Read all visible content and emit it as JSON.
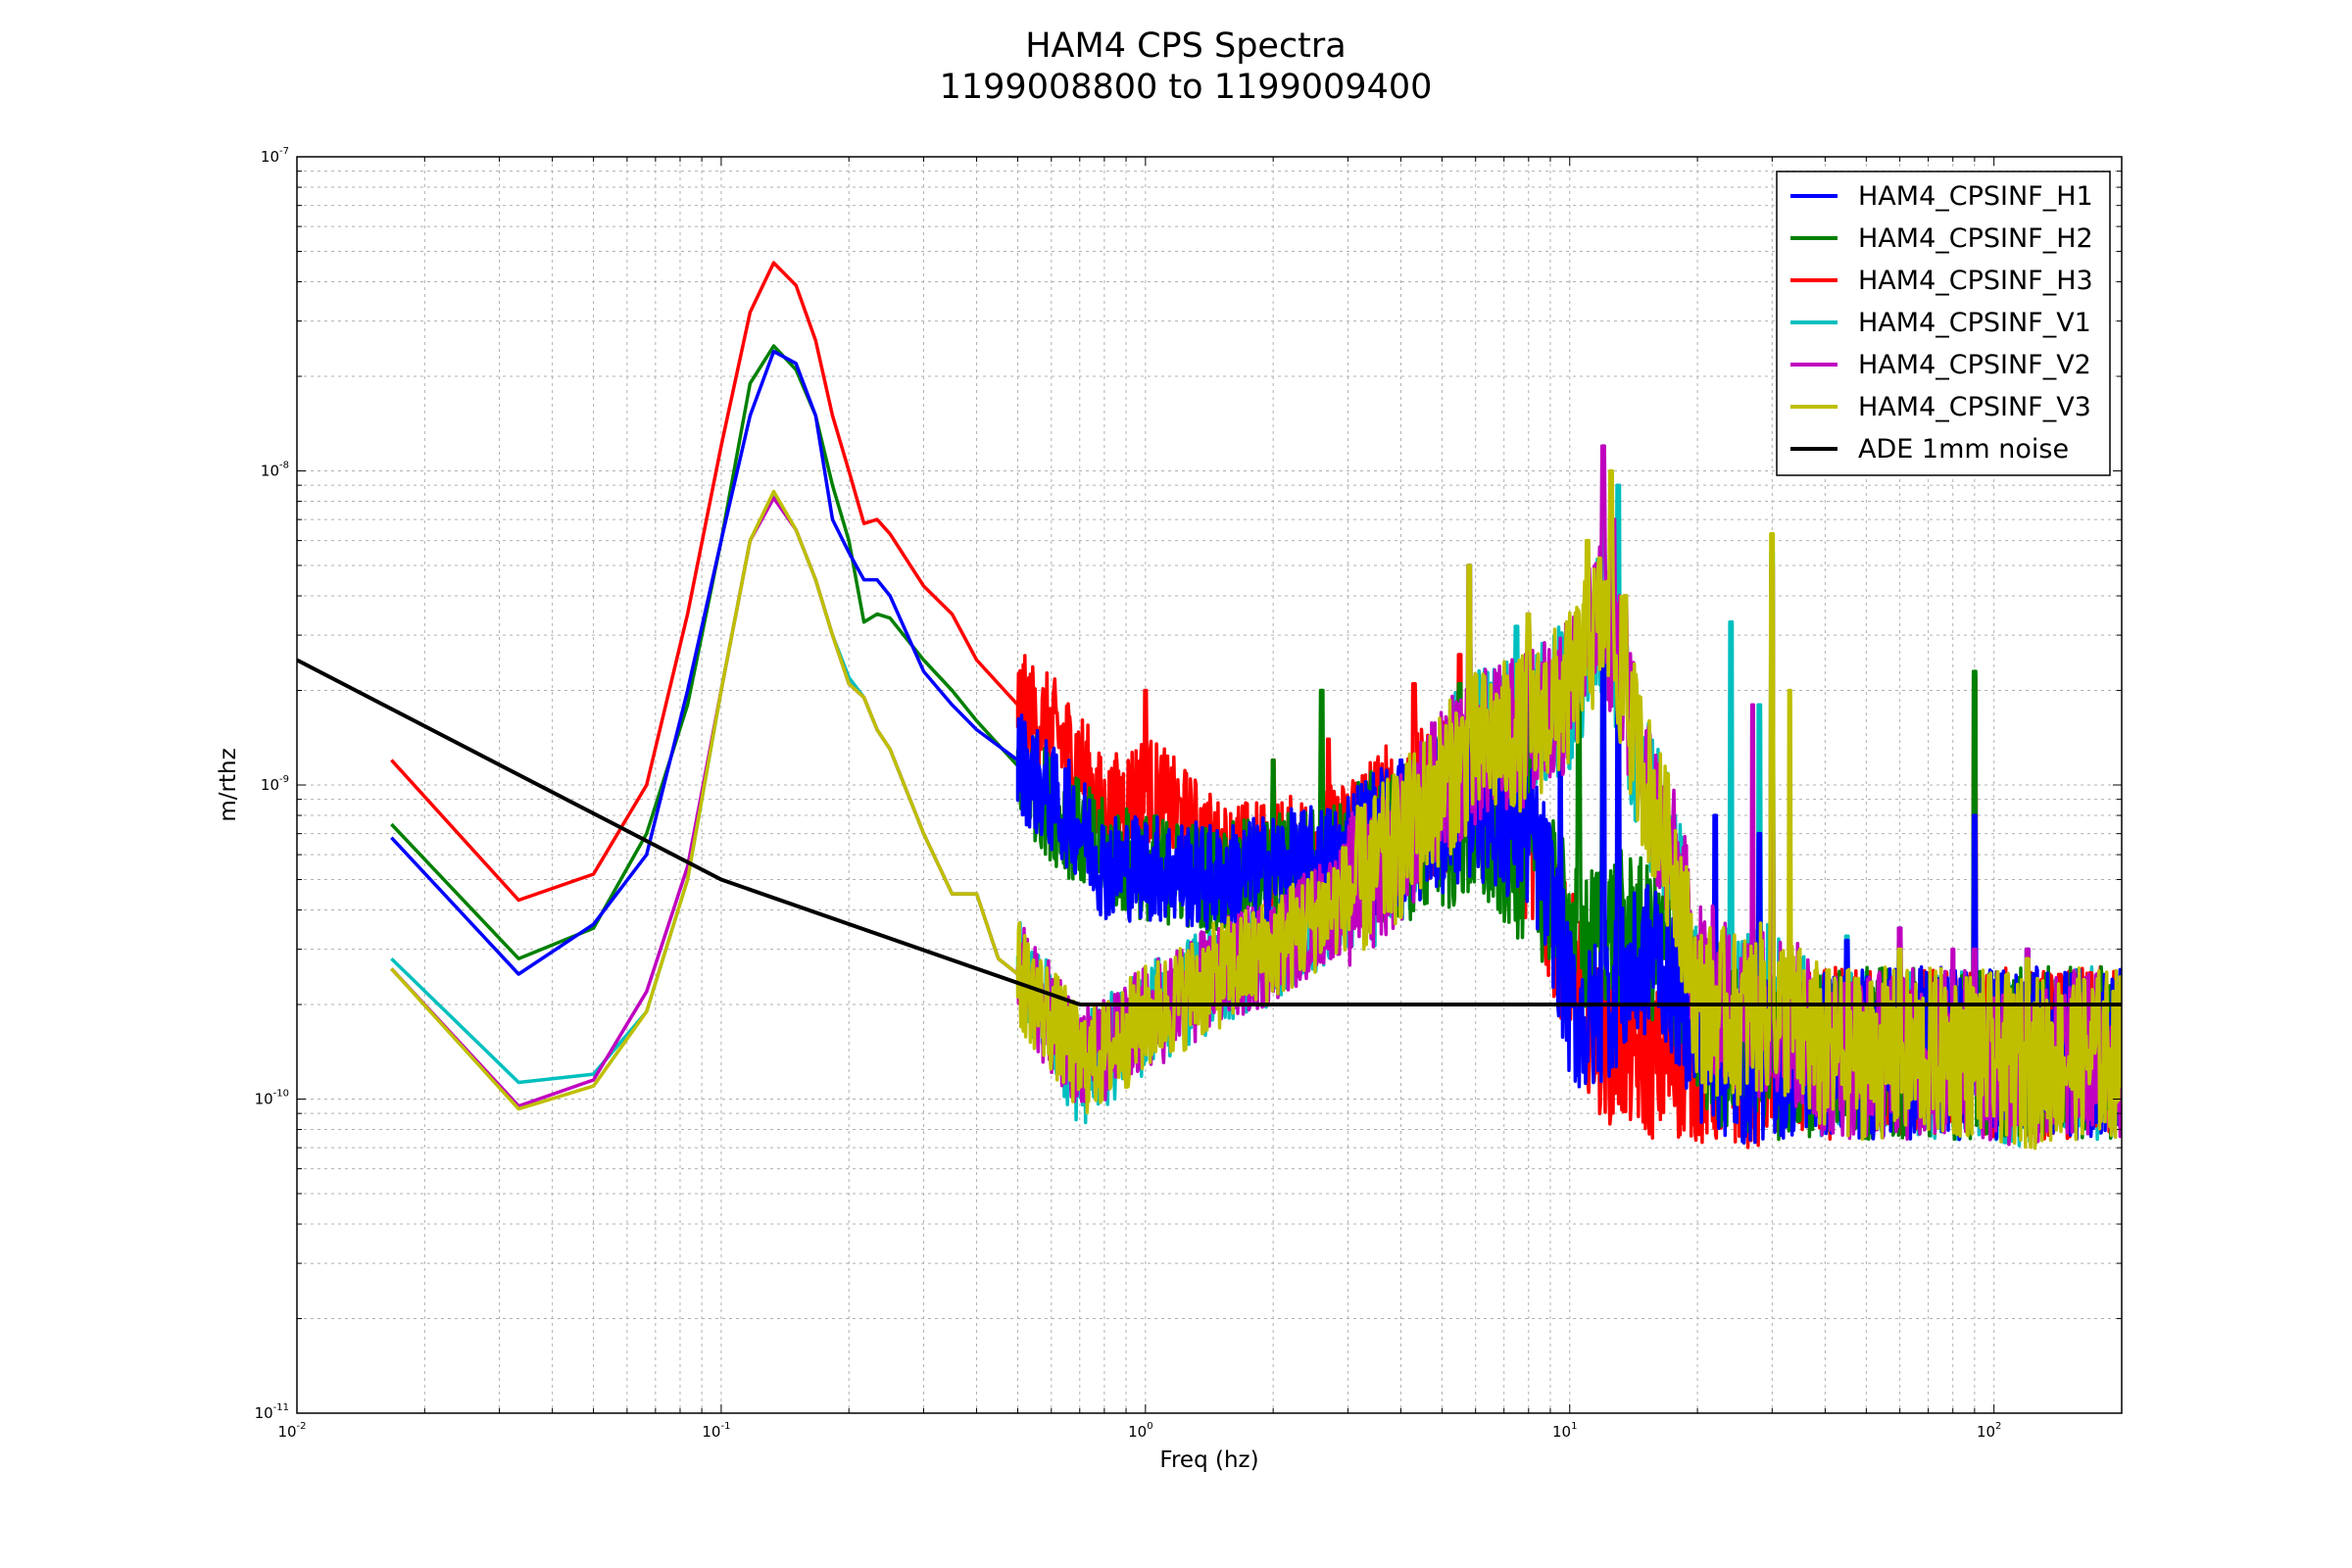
{
  "chart_data": {
    "type": "line",
    "title": "HAM4 CPS Spectra",
    "subtitle": "1199008800 to 1199009400",
    "xlabel": "Freq (hz)",
    "ylabel": "m/rthz",
    "xscale": "log",
    "yscale": "log",
    "xlim": [
      0.01,
      200
    ],
    "ylim": [
      1e-11,
      1e-07
    ],
    "grid": "on (major and minor, dotted)",
    "legend_position": "top-right",
    "x_ticks": [
      {
        "base": "10",
        "exp": "-2",
        "value": 0.01
      },
      {
        "base": "10",
        "exp": "-1",
        "value": 0.1
      },
      {
        "base": "10",
        "exp": "0",
        "value": 1
      },
      {
        "base": "10",
        "exp": "1",
        "value": 10
      },
      {
        "base": "10",
        "exp": "2",
        "value": 100
      }
    ],
    "y_ticks": [
      {
        "base": "10",
        "exp": "-7",
        "value": 1e-07
      },
      {
        "base": "10",
        "exp": "-8",
        "value": 1e-08
      },
      {
        "base": "10",
        "exp": "-9",
        "value": 1e-09
      },
      {
        "base": "10",
        "exp": "-10",
        "value": 1e-10
      },
      {
        "base": "10",
        "exp": "-11",
        "value": 1e-11
      }
    ],
    "series": [
      {
        "name": "HAM4_CPSINF_H1",
        "color": "#0000ff",
        "x": [
          0.0167,
          0.0333,
          0.05,
          0.0667,
          0.0833,
          0.1,
          0.117,
          0.133,
          0.15,
          0.167,
          0.183,
          0.2,
          0.217,
          0.233,
          0.25,
          0.3,
          0.35,
          0.4,
          0.5,
          0.6,
          0.7,
          0.8,
          1.0,
          1.5,
          2.0,
          3.0,
          4.0,
          5.0,
          6.0,
          8.0,
          9.0,
          10.0,
          11.0,
          12.0,
          14.0,
          16.0,
          18.0,
          20.0,
          25.0,
          30.0,
          40.0,
          60.0,
          90.0,
          120.0,
          160.0,
          200.0
        ],
        "y": [
          6.8e-10,
          2.5e-10,
          3.6e-10,
          6e-10,
          2e-09,
          6e-09,
          1.5e-08,
          2.4e-08,
          2.2e-08,
          1.5e-08,
          7e-09,
          5.5e-09,
          4.5e-09,
          4.5e-09,
          4e-09,
          2.3e-09,
          1.8e-09,
          1.5e-09,
          1.2e-09,
          9e-10,
          7.5e-10,
          5.5e-10,
          5.5e-10,
          5e-10,
          5.5e-10,
          6e-10,
          7e-10,
          8e-10,
          9e-10,
          7e-10,
          4.5e-10,
          2e-10,
          1.7e-10,
          2e-10,
          2.5e-10,
          3e-10,
          2.2e-10,
          1.6e-10,
          1.3e-10,
          1.4e-10,
          1.4e-10,
          1.4e-10,
          1.4e-10,
          1.4e-10,
          1.4e-10,
          1.4e-10
        ]
      },
      {
        "name": "HAM4_CPSINF_H2",
        "color": "#008000",
        "x": [
          0.0167,
          0.0333,
          0.05,
          0.0667,
          0.0833,
          0.1,
          0.117,
          0.133,
          0.15,
          0.167,
          0.183,
          0.2,
          0.217,
          0.233,
          0.25,
          0.3,
          0.35,
          0.4,
          0.5,
          0.6,
          0.7,
          0.8,
          1.0,
          1.5,
          2.0,
          3.0,
          4.0,
          5.0,
          6.0,
          8.0,
          9.0,
          10.0,
          11.0,
          12.0,
          14.0,
          16.0,
          18.0,
          20.0,
          25.0,
          30.0,
          40.0,
          60.0,
          90.0,
          120.0,
          160.0,
          200.0
        ],
        "y": [
          7.5e-10,
          2.8e-10,
          3.5e-10,
          7e-10,
          1.8e-09,
          6e-09,
          1.9e-08,
          2.5e-08,
          2.1e-08,
          1.5e-08,
          9e-09,
          6e-09,
          3.3e-09,
          3.5e-09,
          3.4e-09,
          2.5e-09,
          2e-09,
          1.6e-09,
          1.15e-09,
          8.5e-10,
          7e-10,
          6e-10,
          5.5e-10,
          5e-10,
          5.5e-10,
          6e-10,
          6.5e-10,
          7e-10,
          7e-10,
          5.5e-10,
          4.5e-10,
          3.5e-10,
          3e-10,
          3.5e-10,
          3.5e-10,
          3e-10,
          2.5e-10,
          1.7e-10,
          1.4e-10,
          1.4e-10,
          1.4e-10,
          1.4e-10,
          1.4e-10,
          1.4e-10,
          1.4e-10,
          1.4e-10
        ]
      },
      {
        "name": "HAM4_CPSINF_H3",
        "color": "#ff0000",
        "x": [
          0.0167,
          0.0333,
          0.05,
          0.0667,
          0.0833,
          0.1,
          0.117,
          0.133,
          0.15,
          0.167,
          0.183,
          0.2,
          0.217,
          0.233,
          0.25,
          0.3,
          0.35,
          0.4,
          0.5,
          0.6,
          0.7,
          0.8,
          1.0,
          1.5,
          2.0,
          3.0,
          4.0,
          5.0,
          6.0,
          8.0,
          9.0,
          10.0,
          11.0,
          12.0,
          14.0,
          16.0,
          18.0,
          20.0,
          25.0,
          30.0,
          40.0,
          60.0,
          90.0,
          120.0,
          160.0,
          200.0
        ],
        "y": [
          1.2e-09,
          4.3e-10,
          5.2e-10,
          1e-09,
          3.5e-09,
          1.2e-08,
          3.2e-08,
          4.6e-08,
          3.9e-08,
          2.6e-08,
          1.5e-08,
          1e-08,
          6.8e-09,
          7e-09,
          6.3e-09,
          4.3e-09,
          3.5e-09,
          2.5e-09,
          1.8e-09,
          1.5e-09,
          1.2e-09,
          8e-10,
          1e-09,
          6e-10,
          6e-10,
          7e-10,
          8e-10,
          9e-10,
          1e-09,
          6e-10,
          4e-10,
          2.7e-10,
          1.9e-10,
          1.5e-10,
          1.4e-10,
          1.3e-10,
          1.3e-10,
          1.3e-10,
          1.3e-10,
          1.35e-10,
          1.4e-10,
          1.4e-10,
          1.4e-10,
          1.4e-10,
          1.4e-10,
          1.4e-10
        ]
      },
      {
        "name": "HAM4_CPSINF_V1",
        "color": "#00bfbf",
        "x": [
          0.0167,
          0.0333,
          0.05,
          0.0667,
          0.0833,
          0.1,
          0.117,
          0.133,
          0.15,
          0.167,
          0.183,
          0.2,
          0.217,
          0.233,
          0.25,
          0.3,
          0.35,
          0.4,
          0.45,
          0.5,
          0.6,
          0.7,
          0.8,
          1.0,
          1.5,
          2.0,
          3.0,
          4.0,
          5.0,
          6.0,
          8.0,
          10.0,
          12.0,
          13.0,
          14.0,
          16.0,
          18.0,
          20.0,
          25.0,
          30.0,
          40.0,
          60.0,
          90.0,
          120.0,
          160.0,
          200.0
        ],
        "y": [
          2.8e-10,
          1.13e-10,
          1.2e-10,
          1.9e-10,
          5e-10,
          2e-09,
          6e-09,
          8.5e-09,
          6.5e-09,
          4.5e-09,
          3e-09,
          2.2e-09,
          1.9e-09,
          1.5e-09,
          1.3e-09,
          7e-10,
          4.5e-10,
          4.5e-10,
          2.8e-10,
          2.5e-10,
          1.8e-10,
          1.2e-10,
          1.4e-10,
          1.8e-10,
          2.5e-10,
          3e-10,
          4.5e-10,
          6.5e-10,
          1e-09,
          1.3e-09,
          1.5e-09,
          2e-09,
          3.5e-09,
          2.5e-09,
          1.5e-09,
          8e-10,
          5e-10,
          2e-10,
          1.8e-10,
          2e-10,
          1.4e-10,
          1.4e-10,
          1.4e-10,
          1.3e-10,
          1.4e-10,
          1.4e-10
        ]
      },
      {
        "name": "HAM4_CPSINF_V2",
        "color": "#bf00bf",
        "x": [
          0.0167,
          0.0333,
          0.05,
          0.0667,
          0.0833,
          0.1,
          0.117,
          0.133,
          0.15,
          0.167,
          0.183,
          0.2,
          0.217,
          0.233,
          0.25,
          0.3,
          0.35,
          0.4,
          0.45,
          0.5,
          0.6,
          0.7,
          0.8,
          1.0,
          1.5,
          2.0,
          3.0,
          4.0,
          5.0,
          6.0,
          8.0,
          10.0,
          12.0,
          13.0,
          14.0,
          16.0,
          18.0,
          20.0,
          25.0,
          30.0,
          40.0,
          60.0,
          90.0,
          120.0,
          160.0,
          200.0
        ],
        "y": [
          2.6e-10,
          9.5e-11,
          1.15e-10,
          2.2e-10,
          5.5e-10,
          2e-09,
          6e-09,
          8.2e-09,
          6.5e-09,
          4.5e-09,
          3e-09,
          2.1e-09,
          1.9e-09,
          1.5e-09,
          1.3e-09,
          7e-10,
          4.5e-10,
          4.5e-10,
          2.8e-10,
          2.5e-10,
          1.8e-10,
          1.4e-10,
          1.4e-10,
          1.8e-10,
          2.5e-10,
          3e-10,
          4.5e-10,
          6.5e-10,
          1e-09,
          1.3e-09,
          1.5e-09,
          2e-09,
          3.5e-09,
          2.5e-09,
          1.5e-09,
          8e-10,
          5e-10,
          2.5e-10,
          1.8e-10,
          2e-10,
          1.4e-10,
          1.4e-10,
          1.4e-10,
          1.3e-10,
          1.4e-10,
          1.4e-10
        ]
      },
      {
        "name": "HAM4_CPSINF_V3",
        "color": "#bfbf00",
        "x": [
          0.0167,
          0.0333,
          0.05,
          0.0667,
          0.0833,
          0.1,
          0.117,
          0.133,
          0.15,
          0.167,
          0.183,
          0.2,
          0.217,
          0.233,
          0.25,
          0.3,
          0.35,
          0.4,
          0.45,
          0.5,
          0.6,
          0.7,
          0.8,
          1.0,
          1.5,
          2.0,
          3.0,
          4.0,
          5.0,
          6.0,
          8.0,
          10.0,
          12.0,
          13.0,
          14.0,
          16.0,
          18.0,
          20.0,
          25.0,
          30.0,
          40.0,
          60.0,
          90.0,
          120.0,
          160.0,
          200.0
        ],
        "y": [
          2.6e-10,
          9.3e-11,
          1.1e-10,
          1.9e-10,
          5e-10,
          2e-09,
          6e-09,
          8.6e-09,
          6.5e-09,
          4.5e-09,
          3e-09,
          2.1e-09,
          1.9e-09,
          1.5e-09,
          1.3e-09,
          7e-10,
          4.5e-10,
          4.5e-10,
          2.8e-10,
          2.5e-10,
          1.8e-10,
          1.3e-10,
          1.4e-10,
          1.8e-10,
          2.5e-10,
          3e-10,
          4.5e-10,
          6.5e-10,
          1e-09,
          1.3e-09,
          1.5e-09,
          2e-09,
          3.5e-09,
          2.5e-09,
          1.5e-09,
          8e-10,
          5e-10,
          2e-10,
          1.8e-10,
          2e-10,
          1.4e-10,
          1.4e-10,
          1.4e-10,
          1.3e-10,
          1.4e-10,
          1.4e-10
        ]
      },
      {
        "name": "ADE 1mm noise",
        "color": "#000000",
        "x": [
          0.01,
          0.1,
          0.7,
          200
        ],
        "y": [
          2.5e-09,
          5e-10,
          2e-10,
          2e-10
        ]
      }
    ],
    "peaks": [
      {
        "series": 0,
        "x": [
          4.0,
          6.0,
          9.5,
          12.0,
          13.0,
          22.0,
          28.0,
          30.0,
          45.0,
          60.0,
          90.0,
          120.0
        ],
        "y": [
          1.2e-09,
          1.8e-09,
          1.6e-09,
          4e-09,
          3e-09,
          8e-10,
          7e-10,
          2.2e-09,
          3.2e-10,
          3.5e-10,
          8e-10,
          3e-10
        ]
      },
      {
        "series": 1,
        "x": [
          2.0,
          2.6,
          5.5,
          8.0,
          10.5,
          12.0,
          90.0
        ],
        "y": [
          1.2e-09,
          2e-09,
          2.1e-09,
          2.6e-09,
          1.8e-09,
          2.1e-09,
          2.3e-09
        ]
      },
      {
        "series": 2,
        "x": [
          1.0,
          2.0,
          2.7,
          4.3,
          5.5,
          8.0,
          90.0
        ],
        "y": [
          2e-09,
          1.2e-09,
          1.4e-09,
          2.1e-09,
          2.6e-09,
          1.4e-09,
          2.2e-09
        ]
      },
      {
        "series": 3,
        "x": [
          5.8,
          7.5,
          12.0,
          13.0,
          24.0,
          28.0,
          30.0,
          45.0,
          60.0,
          90.0,
          120.0
        ],
        "y": [
          5e-09,
          3.2e-09,
          7e-09,
          9e-09,
          3.3e-09,
          1.8e-09,
          5.5e-09,
          3.3e-10,
          3.5e-10,
          3e-10,
          3e-10
        ]
      },
      {
        "series": 4,
        "x": [
          5.8,
          8.0,
          12.0,
          12.7,
          13.5,
          27.0,
          30.0,
          60.0,
          80.0,
          90.0,
          120.0
        ],
        "y": [
          5e-09,
          3.5e-09,
          1.2e-08,
          7e-09,
          4e-09,
          1.8e-09,
          5e-09,
          3.5e-10,
          3e-10,
          3e-10,
          3e-10
        ]
      },
      {
        "series": 5,
        "x": [
          5.8,
          8.0,
          11.0,
          12.5,
          13.5,
          30.0,
          33.0,
          60.0,
          120.0
        ],
        "y": [
          5e-09,
          3.5e-09,
          6e-09,
          1e-08,
          4e-09,
          6.3e-09,
          2e-09,
          3e-10,
          2.8e-10
        ]
      }
    ]
  }
}
